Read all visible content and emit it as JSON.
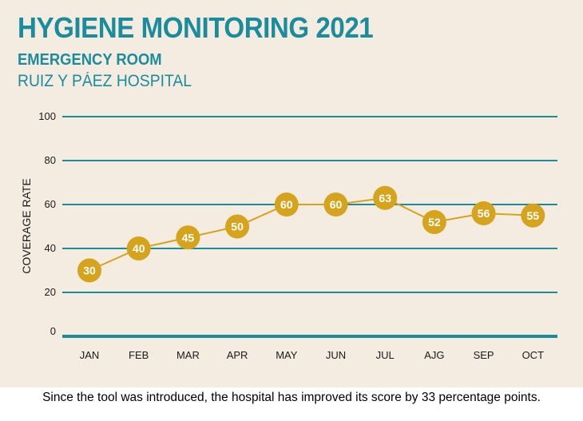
{
  "header": {
    "title": "HYGIENE MONITORING 2021",
    "subtitle": "EMERGENCY ROOM",
    "subtitle2": "RUIZ Y PÁEZ HOSPITAL"
  },
  "footnote": "Since the tool was introduced, the hospital has improved its score by 33 percentage points.",
  "colors": {
    "background": "#f5ece1",
    "accent": "#1a8c9c",
    "series": "#d6a31c"
  },
  "chart_data": {
    "type": "line",
    "title": "HYGIENE MONITORING 2021",
    "subtitle": "EMERGENCY ROOM",
    "xlabel": "",
    "ylabel": "COVERAGE RATE",
    "categories": [
      "JAN",
      "FEB",
      "MAR",
      "APR",
      "MAY",
      "JUN",
      "JUL",
      "AJG",
      "SEP",
      "OCT"
    ],
    "series": [
      {
        "values": [
          30,
          40,
          45,
          50,
          60,
          60,
          63,
          52,
          56,
          55
        ]
      }
    ],
    "y_ticks": [
      "0",
      "20",
      "40",
      "60",
      "80",
      "100"
    ],
    "ylim": [
      0,
      100
    ],
    "grid": true,
    "legend": "none",
    "data_labels": true
  }
}
